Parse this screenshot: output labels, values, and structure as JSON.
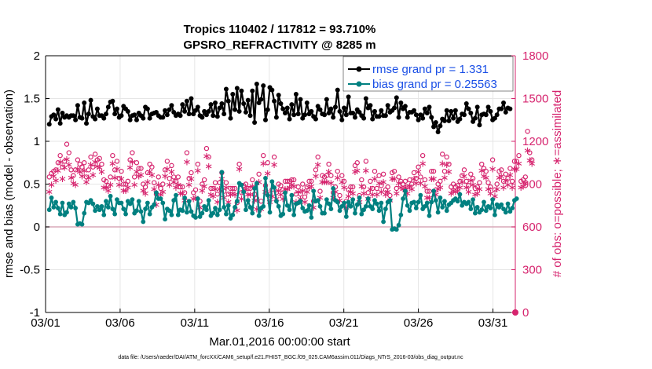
{
  "chart_data": {
    "type": "line",
    "title_line1": "Tropics 110402 / 117812 = 93.710%",
    "title_line2": "GPSRO_REFRACTIVITY @ 8285 m",
    "xlabel": "Mar.01,2016 00:00:00 start",
    "ylabel_left": "rmse and bias (model - observation)",
    "ylabel_right": "# of obs: o=possible; ∗=assimilated",
    "footer": "data file: /Users/raeder/DAI/ATM_forcXX/CAM6_setup/f.e21.FHIST_BGC.f09_025.CAM6assim.011/Diags_NTrS_2016-03/obs_diag_output.nc",
    "xlim": [
      0,
      31.5
    ],
    "ylim_left": [
      -1,
      2
    ],
    "ylim_right": [
      0,
      1800
    ],
    "x_ticks": [
      0,
      5,
      10,
      15,
      20,
      25,
      30
    ],
    "x_tick_labels": [
      "03/01",
      "03/06",
      "03/11",
      "03/16",
      "03/21",
      "03/26",
      "03/31"
    ],
    "y_left_tick_labels": [
      "-1",
      "-0.5",
      "0",
      "0.5",
      "1",
      "1.5",
      "2"
    ],
    "y_right_tick_labels": [
      "0",
      "300",
      "600",
      "900",
      "1200",
      "1500",
      "1800"
    ],
    "colors": {
      "rmse": "#000000",
      "bias": "#008080",
      "obs": "#d6246e",
      "legend_text": "#1a4fe6",
      "grid": "#e6e6e6",
      "zero": "#d9a8b8"
    },
    "series": [
      {
        "name": "rmse grand pr = 1.331",
        "key": "rmse",
        "values": [
          1.2,
          1.29,
          1.31,
          1.26,
          1.37,
          1.21,
          1.33,
          1.28,
          1.3,
          1.28,
          1.3,
          1.3,
          1.25,
          1.42,
          1.28,
          1.27,
          1.45,
          1.21,
          1.32,
          1.48,
          1.29,
          1.26,
          1.38,
          1.3,
          1.3,
          1.27,
          1.32,
          1.4,
          1.46,
          1.47,
          1.32,
          1.38,
          1.28,
          1.3,
          1.41,
          1.38,
          1.35,
          1.25,
          1.3,
          1.31,
          1.25,
          1.33,
          1.3,
          1.27,
          1.4,
          1.38,
          1.27,
          1.32,
          1.33,
          1.34,
          1.3,
          1.28,
          1.28,
          1.36,
          1.31,
          1.37,
          1.42,
          1.34,
          1.3,
          1.32,
          1.3,
          1.43,
          1.35,
          1.47,
          1.32,
          1.5,
          1.32,
          1.36,
          1.4,
          1.3,
          1.28,
          1.35,
          1.31,
          1.35,
          1.43,
          1.3,
          1.45,
          1.29,
          1.39,
          1.44,
          1.32,
          1.61,
          1.47,
          1.27,
          1.55,
          1.37,
          1.62,
          1.35,
          1.59,
          1.44,
          1.34,
          1.48,
          1.3,
          1.59,
          1.22,
          1.67,
          1.45,
          1.49,
          1.65,
          1.25,
          1.37,
          1.63,
          1.6,
          1.47,
          1.28,
          1.54,
          1.44,
          1.38,
          1.33,
          1.39,
          1.26,
          1.43,
          1.31,
          1.55,
          1.32,
          1.49,
          1.27,
          1.31,
          1.45,
          1.32,
          1.35,
          1.29,
          1.26,
          1.41,
          1.37,
          1.32,
          1.31,
          1.49,
          1.33,
          1.38,
          1.28,
          1.4,
          1.6,
          1.35,
          1.25,
          1.39,
          1.31,
          1.52,
          1.33,
          1.33,
          1.28,
          1.37,
          1.34,
          1.3,
          1.27,
          1.5,
          1.39,
          1.42,
          1.26,
          1.35,
          1.29,
          1.29,
          1.36,
          1.3,
          1.3,
          1.42,
          1.34,
          1.36,
          1.39,
          1.51,
          1.28,
          1.45,
          1.38,
          1.41,
          1.28,
          1.34,
          1.34,
          1.36,
          1.31,
          1.25,
          1.31,
          1.27,
          1.38,
          1.33,
          1.4,
          1.28,
          1.17,
          1.22,
          1.11,
          1.18,
          1.26,
          1.24,
          1.36,
          1.24,
          1.35,
          1.27,
          1.36,
          1.23,
          1.26,
          1.32,
          1.31,
          1.44,
          1.38,
          1.33,
          1.23,
          1.27,
          1.4,
          1.19,
          1.31,
          1.32,
          1.31,
          1.4,
          1.35,
          1.25,
          1.27,
          1.31,
          1.38,
          1.38,
          1.45,
          1.34,
          1.39,
          1.38
        ]
      },
      {
        "name": "bias grand pr = 0.25563",
        "key": "bias",
        "values": [
          0.2,
          0.34,
          0.23,
          0.29,
          0.22,
          0.15,
          0.28,
          0.14,
          0.17,
          0.27,
          0.23,
          0.29,
          0.22,
          0.03,
          0.04,
          0.03,
          0.16,
          0.29,
          0.28,
          0.31,
          0.27,
          0.19,
          0.24,
          0.2,
          0.24,
          0.14,
          0.3,
          0.23,
          0.36,
          0.21,
          0.15,
          0.32,
          0.28,
          0.28,
          0.21,
          0.15,
          0.3,
          0.27,
          0.32,
          0.16,
          0.19,
          0.3,
          0.18,
          0.06,
          0.21,
          0.28,
          0.15,
          0.23,
          0.26,
          0.4,
          0.33,
          0.33,
          0.28,
          0.09,
          0.21,
          0.19,
          0.14,
          0.31,
          0.37,
          0.14,
          0.2,
          0.19,
          0.34,
          0.17,
          0.3,
          0.18,
          0.13,
          0.11,
          0.33,
          0.12,
          0.16,
          0.24,
          0.2,
          0.31,
          0.13,
          0.16,
          0.22,
          0.14,
          0.2,
          0.64,
          0.23,
          0.15,
          0.25,
          0.1,
          0.14,
          0.23,
          0.3,
          0.51,
          0.49,
          0.41,
          0.2,
          0.31,
          0.23,
          0.16,
          0.45,
          0.51,
          0.13,
          0.22,
          0.24,
          0.57,
          0.37,
          0.17,
          0.53,
          0.46,
          0.3,
          0.24,
          0.13,
          0.15,
          0.4,
          0.25,
          0.2,
          0.37,
          0.14,
          0.27,
          0.28,
          0.3,
          0.22,
          0.18,
          0.19,
          0.25,
          0.11,
          0.42,
          0.3,
          0.31,
          0.24,
          0.16,
          0.16,
          0.32,
          0.27,
          0.21,
          0.45,
          0.31,
          0.29,
          0.19,
          0.24,
          0.28,
          0.12,
          0.29,
          0.24,
          0.32,
          0.16,
          0.26,
          0.34,
          0.15,
          0.2,
          0.24,
          0.33,
          0.24,
          0.21,
          0.31,
          0.27,
          0.19,
          0.28,
          0.06,
          0.21,
          0.29,
          0.31,
          -0.03,
          -0.02,
          -0.03,
          0.02,
          0.14,
          0.33,
          0.42,
          0.25,
          0.19,
          0.28,
          0.29,
          0.22,
          0.29,
          0.37,
          0.21,
          0.24,
          0.28,
          0.13,
          0.29,
          0.42,
          0.31,
          0.17,
          0.34,
          0.23,
          0.3,
          0.19,
          0.26,
          0.28,
          0.31,
          0.33,
          0.3,
          0.38,
          0.25,
          0.29,
          0.27,
          0.29,
          0.21,
          0.32,
          0.16,
          0.23,
          0.17,
          0.2,
          0.29,
          0.19,
          0.24,
          0.22,
          0.32,
          0.14,
          0.26,
          0.23,
          0.26,
          0.21,
          0.17,
          0.27,
          0.18,
          0.22,
          0.31,
          0.33
        ]
      },
      {
        "name": "possible obs",
        "key": "possible",
        "values": [
          950,
          975,
          990,
          1000,
          1050,
          1100,
          1020,
          1060,
          1180,
          1120,
          1000,
          960,
          1000,
          1070,
          1040,
          1020,
          1050,
          950,
          1000,
          1090,
          1020,
          1110,
          1070,
          1080,
          1040,
          930,
          920,
          890,
          950,
          1100,
          1000,
          1060,
          940,
          990,
          900,
          900,
          920,
          1070,
          1120,
          950,
          1050,
          1010,
          1010,
          900,
          880,
          980,
          1040,
          1020,
          910,
          830,
          950,
          870,
          900,
          1000,
          1060,
          940,
          1030,
          950,
          920,
          950,
          880,
          880,
          840,
          1120,
          940,
          980,
          840,
          860,
          1040,
          780,
          900,
          930,
          1150,
          1090,
          870,
          870,
          910,
          830,
          910,
          980,
          850,
          910,
          830,
          870,
          870,
          870,
          770,
          1040,
          840,
          890,
          900,
          870,
          870,
          930,
          830,
          800,
          970,
          780,
          1100,
          890,
          1050,
          830,
          860,
          1090,
          840,
          900,
          890,
          860,
          920,
          920,
          920,
          930,
          930,
          830,
          880,
          830,
          900,
          810,
          880,
          920,
          920,
          780,
          1000,
          1090,
          850,
          960,
          950,
          960,
          1040,
          960,
          840,
          880,
          990,
          820,
          960,
          920,
          780,
          860,
          880,
          880,
          1030,
          1050,
          820,
          930,
          880,
          1060,
          840,
          920,
          870,
          990,
          870,
          960,
          890,
          970,
          860,
          880,
          820,
          980,
          990,
          870,
          950,
          920,
          900,
          920,
          880,
          930,
          900,
          980,
          940,
          1020,
          950,
          1100,
          930,
          850,
          850,
          990,
          990,
          860,
          900,
          920,
          1110,
          990,
          1090,
          1040,
          880,
          900,
          880,
          890,
          920,
          960,
          1000,
          920,
          890,
          970,
          940,
          870,
          880,
          910,
          1040,
          1010,
          990,
          910,
          880,
          1070,
          860,
          900,
          990,
          1000,
          920,
          970,
          940,
          1010,
          920,
          1060,
          1060,
          1100,
          920,
          930,
          950,
          1270,
          1120,
          1070
        ]
      },
      {
        "name": "assimilated obs",
        "key": "assimilated",
        "values": [
          850,
          900,
          960,
          930,
          1000,
          1060,
          940,
          1020,
          1080,
          1040,
          950,
          910,
          900,
          1010,
          990,
          960,
          1000,
          920,
          950,
          1040,
          970,
          1060,
          1030,
          1020,
          990,
          880,
          880,
          860,
          900,
          1050,
          950,
          1010,
          900,
          940,
          860,
          860,
          880,
          1020,
          1060,
          900,
          990,
          960,
          970,
          860,
          840,
          920,
          990,
          970,
          870,
          760,
          900,
          830,
          850,
          960,
          1010,
          900,
          990,
          920,
          880,
          900,
          840,
          840,
          790,
          1060,
          900,
          940,
          800,
          810,
          1000,
          740,
          860,
          890,
          1100,
          1030,
          830,
          820,
          870,
          780,
          870,
          940,
          810,
          880,
          780,
          830,
          840,
          830,
          720,
          1010,
          800,
          850,
          870,
          830,
          830,
          890,
          790,
          730,
          920,
          730,
          1050,
          850,
          980,
          780,
          820,
          1040,
          800,
          860,
          830,
          800,
          870,
          870,
          880,
          900,
          890,
          780,
          850,
          800,
          860,
          780,
          850,
          880,
          890,
          740,
          960,
          1040,
          810,
          920,
          920,
          920,
          990,
          910,
          810,
          850,
          950,
          790,
          920,
          880,
          740,
          820,
          850,
          840,
          990,
          1000,
          780,
          890,
          840,
          1000,
          800,
          870,
          830,
          940,
          830,
          910,
          850,
          920,
          830,
          850,
          790,
          940,
          940,
          840,
          910,
          880,
          870,
          880,
          840,
          890,
          870,
          940,
          910,
          990,
          910,
          1050,
          890,
          810,
          810,
          940,
          940,
          830,
          870,
          880,
          1050,
          950,
          1040,
          990,
          840,
          860,
          850,
          860,
          880,
          920,
          960,
          880,
          850,
          930,
          900,
          830,
          840,
          870,
          1000,
          960,
          950,
          870,
          840,
          1010,
          820,
          870,
          950,
          960,
          880,
          930,
          900,
          970,
          880,
          1010,
          1010,
          1050,
          880,
          890,
          910,
          1140,
          1070,
          1050
        ]
      }
    ],
    "legend": [
      {
        "label": "rmse grand pr = 1.331",
        "series": "rmse"
      },
      {
        "label": "bias grand pr = 0.25563",
        "series": "bias"
      }
    ]
  }
}
